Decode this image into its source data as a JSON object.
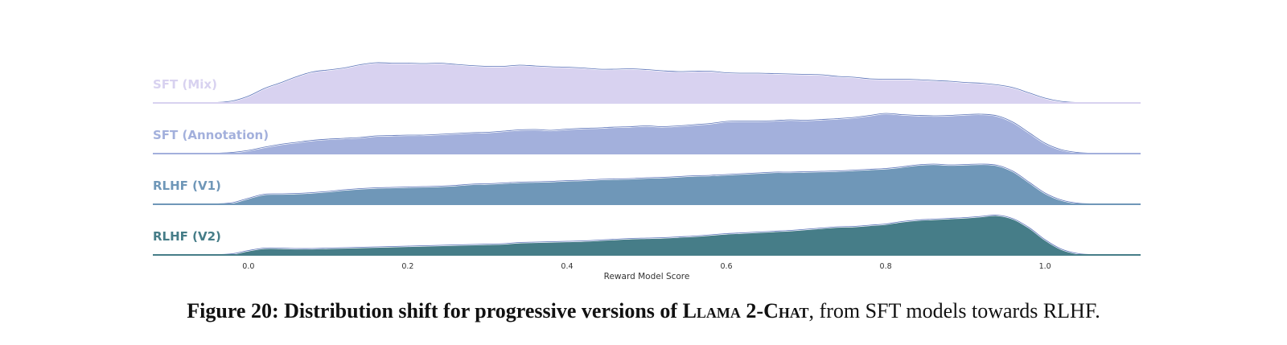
{
  "caption": {
    "figure_label": "Figure 20:",
    "bold_text": "Distribution shift for progressive versions of",
    "model_name": "Llama 2-Chat",
    "rest_text": ", from SFT models towards RLHF."
  },
  "chart_data": {
    "type": "area",
    "subtype": "ridgeline",
    "xlabel": "Reward Model Score",
    "xlim": [
      -0.12,
      1.12
    ],
    "xticks": [
      "0.0",
      "0.2",
      "0.4",
      "0.6",
      "0.8",
      "1.0"
    ],
    "ytick_labels_shown": false,
    "grid": false,
    "x": [
      -0.12,
      -0.06,
      -0.04,
      -0.02,
      0.0,
      0.02,
      0.04,
      0.06,
      0.08,
      0.1,
      0.12,
      0.14,
      0.16,
      0.18,
      0.2,
      0.22,
      0.24,
      0.26,
      0.28,
      0.3,
      0.32,
      0.34,
      0.36,
      0.38,
      0.4,
      0.42,
      0.44,
      0.46,
      0.48,
      0.5,
      0.52,
      0.54,
      0.56,
      0.58,
      0.6,
      0.62,
      0.64,
      0.66,
      0.68,
      0.7,
      0.72,
      0.74,
      0.76,
      0.78,
      0.8,
      0.82,
      0.84,
      0.86,
      0.88,
      0.9,
      0.92,
      0.94,
      0.96,
      0.98,
      1.0,
      1.02,
      1.04,
      1.06,
      1.12
    ],
    "series": [
      {
        "name": "SFT (Mix)",
        "color": "#d8d2f0",
        "label_color": "#d8d2f0",
        "values": [
          0,
          0,
          0.01,
          0.05,
          0.17,
          0.36,
          0.5,
          0.65,
          0.77,
          0.82,
          0.87,
          0.95,
          1.0,
          0.99,
          0.99,
          0.98,
          0.99,
          0.96,
          0.93,
          0.91,
          0.91,
          0.94,
          0.92,
          0.9,
          0.89,
          0.87,
          0.84,
          0.84,
          0.85,
          0.83,
          0.8,
          0.78,
          0.79,
          0.79,
          0.75,
          0.74,
          0.74,
          0.73,
          0.72,
          0.71,
          0.7,
          0.66,
          0.64,
          0.6,
          0.59,
          0.59,
          0.58,
          0.56,
          0.54,
          0.51,
          0.49,
          0.45,
          0.38,
          0.25,
          0.12,
          0.04,
          0.01,
          0,
          0
        ]
      },
      {
        "name": "SFT (Annotation)",
        "color": "#a3b0dc",
        "label_color": "#a3b0dc",
        "values": [
          0,
          0,
          0.01,
          0.03,
          0.08,
          0.16,
          0.23,
          0.28,
          0.33,
          0.36,
          0.38,
          0.4,
          0.44,
          0.45,
          0.46,
          0.46,
          0.48,
          0.5,
          0.52,
          0.53,
          0.56,
          0.59,
          0.6,
          0.58,
          0.61,
          0.63,
          0.64,
          0.66,
          0.67,
          0.69,
          0.67,
          0.69,
          0.72,
          0.75,
          0.8,
          0.81,
          0.81,
          0.82,
          0.84,
          0.83,
          0.85,
          0.87,
          0.9,
          0.95,
          1.0,
          0.97,
          0.95,
          0.94,
          0.95,
          0.97,
          0.98,
          0.94,
          0.78,
          0.52,
          0.26,
          0.1,
          0.03,
          0.01,
          0
        ]
      },
      {
        "name": "RLHF (V1)",
        "color": "#6f97b8",
        "label_color": "#6f97b8",
        "values": [
          0,
          0,
          0.01,
          0.04,
          0.15,
          0.25,
          0.26,
          0.27,
          0.29,
          0.32,
          0.36,
          0.39,
          0.41,
          0.42,
          0.43,
          0.44,
          0.45,
          0.47,
          0.5,
          0.51,
          0.53,
          0.55,
          0.56,
          0.57,
          0.59,
          0.6,
          0.62,
          0.63,
          0.64,
          0.66,
          0.67,
          0.69,
          0.71,
          0.72,
          0.74,
          0.76,
          0.78,
          0.8,
          0.8,
          0.81,
          0.82,
          0.83,
          0.85,
          0.87,
          0.89,
          0.93,
          0.98,
          1.0,
          0.98,
          0.99,
          1.0,
          0.97,
          0.82,
          0.55,
          0.28,
          0.11,
          0.03,
          0.01,
          0
        ]
      },
      {
        "name": "RLHF (V2)",
        "color": "#467d88",
        "label_color": "#467d88",
        "values": [
          0,
          0,
          0.01,
          0.03,
          0.11,
          0.17,
          0.17,
          0.16,
          0.16,
          0.17,
          0.18,
          0.19,
          0.2,
          0.21,
          0.22,
          0.23,
          0.24,
          0.25,
          0.26,
          0.27,
          0.28,
          0.31,
          0.32,
          0.33,
          0.34,
          0.35,
          0.37,
          0.39,
          0.41,
          0.42,
          0.43,
          0.45,
          0.47,
          0.5,
          0.53,
          0.55,
          0.57,
          0.59,
          0.61,
          0.64,
          0.67,
          0.7,
          0.71,
          0.74,
          0.77,
          0.83,
          0.87,
          0.89,
          0.91,
          0.93,
          0.96,
          0.99,
          0.9,
          0.68,
          0.38,
          0.15,
          0.04,
          0.01,
          0
        ]
      }
    ]
  }
}
